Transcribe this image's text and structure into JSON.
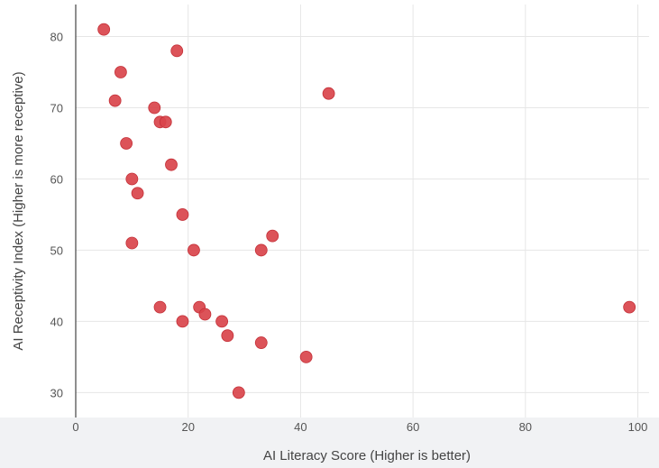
{
  "chart_data": {
    "type": "scatter",
    "xlabel": "AI Literacy Score (Higher is better)",
    "ylabel": "AI Receptivity Index (Higher is more receptive)",
    "xlim": [
      0,
      102
    ],
    "ylim": [
      26.5,
      84.5
    ],
    "x_ticks": [
      0,
      20,
      40,
      60,
      80,
      100
    ],
    "y_ticks": [
      30,
      40,
      50,
      60,
      70,
      80
    ],
    "grid": true,
    "marker_color": "#d9444b",
    "points": [
      {
        "x": 5,
        "y": 81
      },
      {
        "x": 18,
        "y": 78
      },
      {
        "x": 8,
        "y": 75
      },
      {
        "x": 45,
        "y": 72
      },
      {
        "x": 7,
        "y": 71
      },
      {
        "x": 14,
        "y": 70
      },
      {
        "x": 15,
        "y": 68
      },
      {
        "x": 16,
        "y": 68
      },
      {
        "x": 9,
        "y": 65
      },
      {
        "x": 17,
        "y": 62
      },
      {
        "x": 10,
        "y": 60
      },
      {
        "x": 11,
        "y": 58
      },
      {
        "x": 19,
        "y": 55
      },
      {
        "x": 35,
        "y": 52
      },
      {
        "x": 10,
        "y": 51
      },
      {
        "x": 21,
        "y": 50
      },
      {
        "x": 33,
        "y": 50
      },
      {
        "x": 15,
        "y": 42
      },
      {
        "x": 22,
        "y": 42
      },
      {
        "x": 98.5,
        "y": 42
      },
      {
        "x": 23,
        "y": 41
      },
      {
        "x": 19,
        "y": 40
      },
      {
        "x": 26,
        "y": 40
      },
      {
        "x": 27,
        "y": 38
      },
      {
        "x": 33,
        "y": 37
      },
      {
        "x": 41,
        "y": 35
      },
      {
        "x": 29,
        "y": 30
      }
    ]
  }
}
